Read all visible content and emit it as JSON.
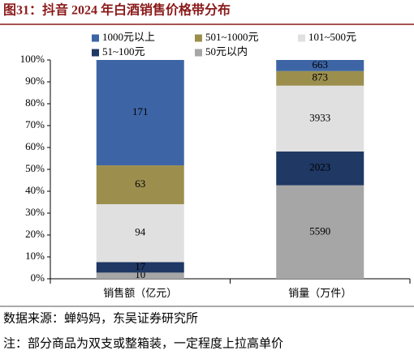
{
  "chart_data": {
    "type": "bar",
    "stack": "percent",
    "title": "图31：抖音 2024 年白酒销售价格带分布",
    "source": "数据来源：蝉妈妈，东吴证券研究所",
    "note": "注：部分商品为双支或整箱装，一定程度上拉高单价",
    "categories": [
      "销售额（亿元）",
      "销量（万件）"
    ],
    "series": [
      {
        "name": "50元以内",
        "color": "#a6a6a6",
        "label_color": "#ffffff",
        "values": [
          10,
          5590
        ]
      },
      {
        "name": "51~100元",
        "color": "#1f3864",
        "label_color": "#ffffff",
        "values": [
          17,
          2023
        ]
      },
      {
        "name": "101~500元",
        "color": "#e0e0e0",
        "label_color": "#000000",
        "values": [
          94,
          3933
        ]
      },
      {
        "name": "501~1000元",
        "color": "#9c8f4e",
        "label_color": "#ffffff",
        "values": [
          63,
          873
        ]
      },
      {
        "name": "1000元以上",
        "color": "#3d65a6",
        "label_color": "#ffffff",
        "values": [
          171,
          663
        ]
      }
    ],
    "ylim": [
      0,
      100
    ],
    "yticks": [
      {
        "value": 0,
        "label": "0%"
      },
      {
        "value": 10,
        "label": "10%"
      },
      {
        "value": 20,
        "label": "20%"
      },
      {
        "value": 30,
        "label": "30%"
      },
      {
        "value": 40,
        "label": "40%"
      },
      {
        "value": 50,
        "label": "50%"
      },
      {
        "value": 60,
        "label": "60%"
      },
      {
        "value": 70,
        "label": "70%"
      },
      {
        "value": 80,
        "label": "80%"
      },
      {
        "value": 90,
        "label": "90%"
      },
      {
        "value": 100,
        "label": "100%"
      }
    ],
    "grid": false
  }
}
